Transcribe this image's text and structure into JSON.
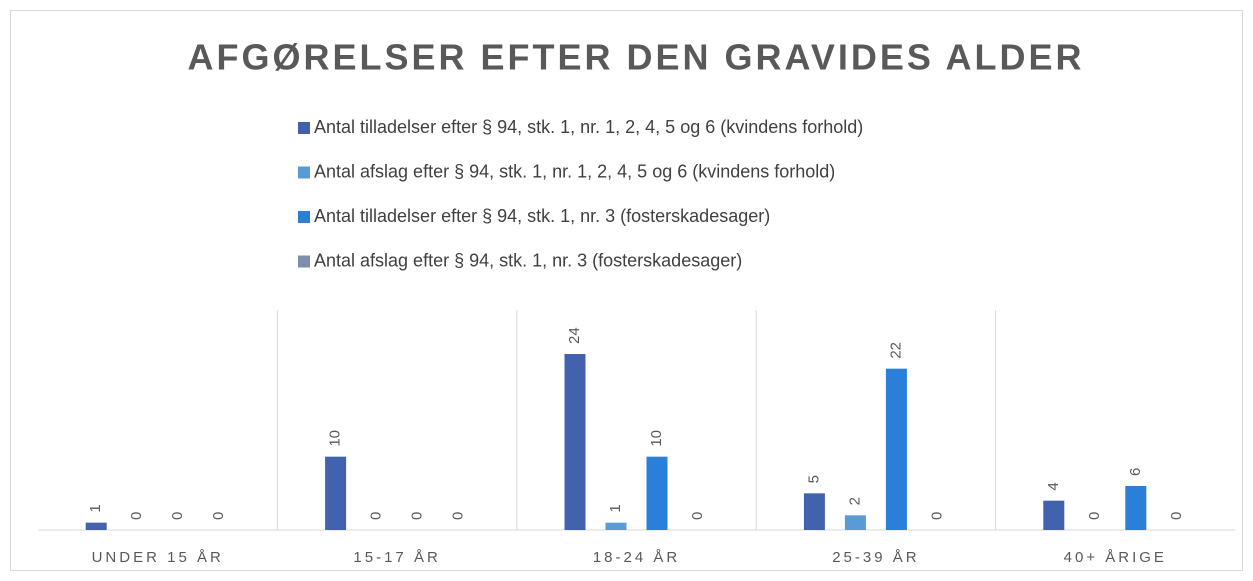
{
  "chart_data": {
    "type": "bar",
    "title": "AFGØRELSER EFTER DEN GRAVIDES ALDER",
    "categories": [
      "UNDER 15 ÅR",
      "15-17 ÅR",
      "18-24 ÅR",
      "25-39 ÅR",
      "40+ ÅRIGE"
    ],
    "series": [
      {
        "name": "Antal tilladelser efter § 94, stk. 1, nr. 1, 2, 4, 5 og 6 (kvindens forhold)",
        "color": "#4262ad",
        "values": [
          1,
          10,
          24,
          5,
          4
        ]
      },
      {
        "name": "Antal afslag efter § 94, stk. 1, nr. 1, 2, 4, 5 og 6 (kvindens forhold)",
        "color": "#5b9bd5",
        "values": [
          0,
          0,
          1,
          2,
          0
        ]
      },
      {
        "name": "Antal tilladelser efter § 94, stk. 1, nr. 3 (fosterskadesager)",
        "color": "#2a7fd8",
        "values": [
          0,
          0,
          10,
          22,
          6
        ]
      },
      {
        "name": "Antal afslag efter § 94, stk. 1, nr. 3 (fosterskadesager)",
        "color": "#7f8faa",
        "values": [
          0,
          0,
          0,
          0,
          0
        ]
      }
    ]
  }
}
